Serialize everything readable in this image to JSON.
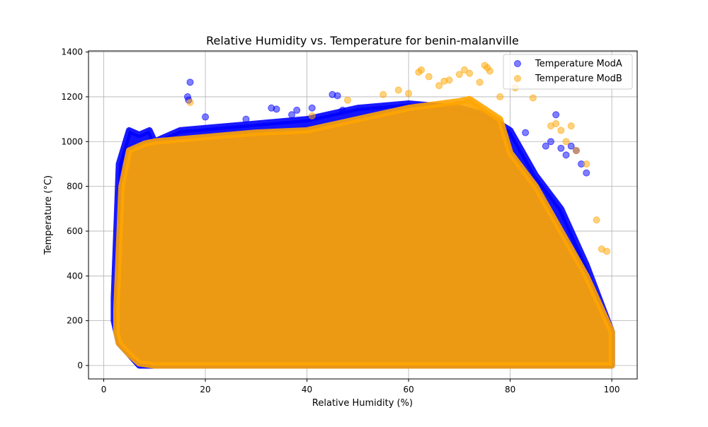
{
  "chart_data": {
    "type": "scatter",
    "title": "Relative Humidity vs. Temperature for benin-malanville",
    "xlabel": "Relative Humidity (%)",
    "ylabel": "Temperature (°C)",
    "xlim": [
      -3,
      105
    ],
    "ylim": [
      -60,
      1405
    ],
    "xticks": [
      0,
      20,
      40,
      60,
      80,
      100
    ],
    "yticks": [
      0,
      200,
      400,
      600,
      800,
      1000,
      1200,
      1400
    ],
    "grid": true,
    "legend_position": "top-right",
    "series": [
      {
        "name": "Temperature ModA",
        "color": "#0000ff",
        "density_region": {
          "x": [
            2,
            3,
            5,
            7,
            9,
            10,
            15,
            20,
            30,
            40,
            50,
            60,
            70,
            75,
            80,
            85,
            90,
            95,
            100,
            100,
            80,
            60,
            40,
            20,
            10,
            7,
            5,
            3,
            2
          ],
          "y": [
            300,
            900,
            1050,
            1030,
            1050,
            1000,
            1050,
            1060,
            1080,
            1100,
            1150,
            1170,
            1150,
            1120,
            1050,
            850,
            700,
            450,
            150,
            0,
            0,
            0,
            0,
            0,
            0,
            0,
            50,
            100,
            200
          ]
        },
        "sparse_points": {
          "x": [
            16.5,
            16.7,
            17,
            20,
            28,
            33,
            34,
            37,
            38,
            41,
            45,
            46,
            47,
            83,
            87,
            88,
            89,
            90,
            91,
            92,
            93,
            94,
            95
          ],
          "y": [
            1200,
            1185,
            1265,
            1110,
            1100,
            1150,
            1145,
            1120,
            1140,
            1150,
            1210,
            1205,
            1140,
            1040,
            980,
            1000,
            1120,
            970,
            940,
            980,
            960,
            900,
            860
          ]
        }
      },
      {
        "name": "Temperature ModB",
        "color": "#ffa500",
        "density_region": {
          "x": [
            2.5,
            3.5,
            5,
            8,
            10,
            15,
            20,
            30,
            40,
            50,
            60,
            70,
            72,
            78,
            80,
            85,
            90,
            95,
            100,
            100,
            80,
            60,
            40,
            20,
            10,
            7,
            5,
            3,
            2.5
          ],
          "y": [
            250,
            800,
            960,
            990,
            1000,
            1010,
            1020,
            1040,
            1050,
            1100,
            1150,
            1180,
            1190,
            1100,
            950,
            800,
            600,
            400,
            150,
            0,
            0,
            0,
            0,
            0,
            0,
            10,
            50,
            100,
            150
          ]
        },
        "sparse_points": {
          "x": [
            17,
            41,
            48,
            55,
            58,
            60,
            62,
            62.5,
            64,
            66,
            67,
            68,
            70,
            71,
            72,
            74,
            75,
            75.5,
            76,
            78,
            81,
            84.5,
            88,
            89,
            90,
            91,
            92,
            93,
            95,
            97,
            98,
            99
          ],
          "y": [
            1175,
            1115,
            1185,
            1210,
            1230,
            1215,
            1310,
            1320,
            1290,
            1250,
            1270,
            1275,
            1300,
            1320,
            1305,
            1265,
            1340,
            1330,
            1315,
            1200,
            1240,
            1195,
            1070,
            1080,
            1050,
            1000,
            1070,
            960,
            900,
            650,
            520,
            510
          ]
        }
      }
    ]
  }
}
